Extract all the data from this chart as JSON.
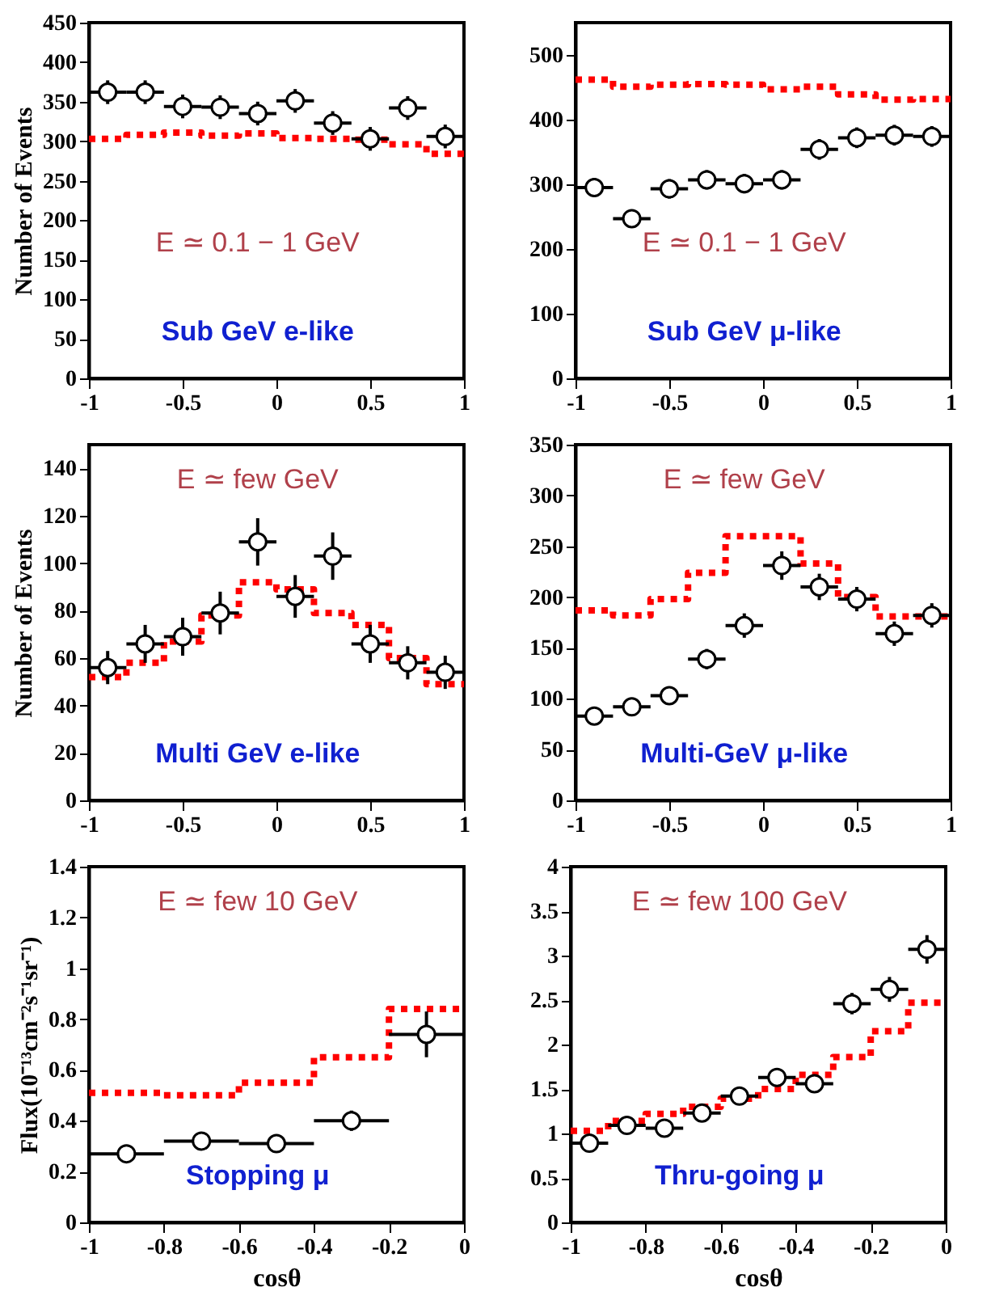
{
  "chart_data": [
    {
      "type": "scatter",
      "ylabel": "Number of Events",
      "annotations": [
        "E ≃ 0.1 − 1 GeV",
        "Sub GeV e-like"
      ],
      "xlim": [
        -1,
        1
      ],
      "xticks": [
        -1,
        -0.5,
        0,
        0.5,
        1
      ],
      "ylim": [
        0,
        450
      ],
      "yticks": [
        0,
        50,
        100,
        150,
        200,
        250,
        300,
        350,
        400,
        450
      ],
      "grid": false,
      "series": [
        {
          "type": "scatter",
          "color": "#000000",
          "marker": "circle",
          "x": [
            -0.9,
            -0.7,
            -0.5,
            -0.3,
            -0.1,
            0.1,
            0.3,
            0.5,
            0.7,
            0.9
          ],
          "values": [
            362,
            362,
            344,
            343,
            335,
            351,
            323,
            303,
            342,
            306
          ],
          "errors": [
            15,
            15,
            15,
            15,
            15,
            15,
            15,
            15,
            15,
            15
          ],
          "xerrors": [
            0.1,
            0.1,
            0.1,
            0.1,
            0.1,
            0.1,
            0.1,
            0.1,
            0.1,
            0.1
          ]
        },
        {
          "type": "step",
          "color": "#ff0000",
          "line_style": "dotted",
          "x": [
            -1,
            -0.8,
            -0.6,
            -0.4,
            -0.2,
            0,
            0.2,
            0.4,
            0.6,
            0.8,
            1
          ],
          "values": [
            303,
            308,
            311,
            307,
            310,
            304,
            303,
            302,
            296,
            284,
            284
          ]
        }
      ]
    },
    {
      "type": "scatter",
      "annotations": [
        "E ≃ 0.1 − 1 GeV",
        "Sub GeV μ-like"
      ],
      "xlim": [
        -1,
        1
      ],
      "xticks": [
        -1,
        -0.5,
        0,
        0.5,
        1
      ],
      "ylim": [
        0,
        550
      ],
      "yticks": [
        0,
        100,
        200,
        300,
        400,
        500
      ],
      "grid": false,
      "series": [
        {
          "type": "scatter",
          "color": "#000000",
          "marker": "circle",
          "x": [
            -0.9,
            -0.7,
            -0.5,
            -0.3,
            -0.1,
            0.1,
            0.3,
            0.5,
            0.7,
            0.9
          ],
          "values": [
            295,
            247,
            293,
            307,
            301,
            307,
            354,
            372,
            376,
            374
          ],
          "errors": [
            15,
            14,
            15,
            15,
            15,
            15,
            16,
            16,
            16,
            16
          ],
          "xerrors": [
            0.1,
            0.1,
            0.1,
            0.1,
            0.1,
            0.1,
            0.1,
            0.1,
            0.1,
            0.1
          ]
        },
        {
          "type": "step",
          "color": "#ff0000",
          "line_style": "dotted",
          "x": [
            -1,
            -0.8,
            -0.6,
            -0.4,
            -0.2,
            0,
            0.2,
            0.4,
            0.6,
            0.8,
            1
          ],
          "values": [
            462,
            451,
            454,
            455,
            454,
            447,
            451,
            439,
            431,
            432,
            432
          ]
        }
      ]
    },
    {
      "type": "scatter",
      "ylabel": "Number of Events",
      "annotations": [
        "E ≃ few GeV",
        "Multi GeV e-like"
      ],
      "xlim": [
        -1,
        1
      ],
      "xticks": [
        -1,
        -0.5,
        0,
        0.5,
        1
      ],
      "ylim": [
        0,
        150
      ],
      "yticks": [
        0,
        20,
        40,
        60,
        80,
        100,
        120,
        140
      ],
      "grid": false,
      "series": [
        {
          "type": "scatter",
          "color": "#000000",
          "marker": "circle",
          "x": [
            -0.9,
            -0.7,
            -0.5,
            -0.3,
            -0.1,
            0.1,
            0.3,
            0.5,
            0.7,
            0.9
          ],
          "values": [
            56,
            66,
            69,
            79,
            109,
            86,
            103,
            66,
            58,
            54
          ],
          "errors": [
            7,
            8,
            8,
            9,
            10,
            9,
            10,
            8,
            7,
            7
          ],
          "xerrors": [
            0.1,
            0.1,
            0.1,
            0.1,
            0.1,
            0.1,
            0.1,
            0.1,
            0.1,
            0.1
          ]
        },
        {
          "type": "step",
          "color": "#ff0000",
          "line_style": "dotted",
          "x": [
            -1,
            -0.8,
            -0.6,
            -0.4,
            -0.2,
            0,
            0.2,
            0.4,
            0.6,
            0.8,
            1
          ],
          "values": [
            52,
            58,
            67,
            78,
            92,
            89,
            79,
            74,
            60,
            49,
            49
          ]
        }
      ]
    },
    {
      "type": "scatter",
      "annotations": [
        "E ≃ few GeV",
        "Multi-GeV μ-like"
      ],
      "xlim": [
        -1,
        1
      ],
      "xticks": [
        -1,
        -0.5,
        0,
        0.5,
        1
      ],
      "ylim": [
        0,
        350
      ],
      "yticks": [
        0,
        50,
        100,
        150,
        200,
        250,
        300,
        350
      ],
      "grid": false,
      "series": [
        {
          "type": "scatter",
          "color": "#000000",
          "marker": "circle",
          "x": [
            -0.9,
            -0.7,
            -0.5,
            -0.3,
            -0.1,
            0.1,
            0.3,
            0.5,
            0.7,
            0.9
          ],
          "values": [
            83,
            92,
            103,
            139,
            172,
            231,
            210,
            198,
            164,
            182
          ],
          "errors": [
            8,
            9,
            9,
            10,
            12,
            14,
            13,
            12,
            12,
            12
          ],
          "xerrors": [
            0.1,
            0.1,
            0.1,
            0.1,
            0.1,
            0.1,
            0.1,
            0.1,
            0.1,
            0.1
          ]
        },
        {
          "type": "step",
          "color": "#ff0000",
          "line_style": "dotted",
          "x": [
            -1,
            -0.8,
            -0.6,
            -0.4,
            -0.2,
            0,
            0.2,
            0.4,
            0.6,
            0.8,
            1
          ],
          "values": [
            187,
            182,
            198,
            224,
            260,
            260,
            233,
            200,
            181,
            181,
            181
          ]
        }
      ]
    },
    {
      "type": "scatter",
      "ylabel": "Flux(10⁻¹³cm⁻²s⁻¹sr⁻¹)",
      "xlabel": "cosθ",
      "annotations": [
        "E ≃ few 10 GeV",
        "Stopping μ"
      ],
      "xlim": [
        -1,
        0
      ],
      "xticks": [
        -1,
        -0.8,
        -0.6,
        -0.4,
        -0.2,
        0
      ],
      "ylim": [
        0,
        1.4
      ],
      "yticks": [
        0,
        0.2,
        0.4,
        0.6,
        0.8,
        1,
        1.2,
        1.4
      ],
      "grid": false,
      "series": [
        {
          "type": "scatter",
          "color": "#000000",
          "marker": "circle",
          "x": [
            -0.9,
            -0.7,
            -0.5,
            -0.3,
            -0.1
          ],
          "values": [
            0.27,
            0.32,
            0.31,
            0.4,
            0.74
          ],
          "errors": [
            0.03,
            0.03,
            0.03,
            0.04,
            0.09
          ],
          "xerrors": [
            0.1,
            0.1,
            0.1,
            0.1,
            0.1
          ]
        },
        {
          "type": "step",
          "color": "#ff0000",
          "line_style": "dotted",
          "x": [
            -1,
            -0.8,
            -0.6,
            -0.4,
            -0.2,
            0
          ],
          "values": [
            0.51,
            0.5,
            0.55,
            0.65,
            0.84,
            0.84
          ]
        }
      ]
    },
    {
      "type": "scatter",
      "xlabel": "cosθ",
      "annotations": [
        "E ≃ few 100 GeV",
        "Thru-going μ"
      ],
      "xlim": [
        -1,
        0
      ],
      "xticks": [
        -1,
        -0.8,
        -0.6,
        -0.4,
        -0.2,
        0
      ],
      "ylim": [
        0,
        4
      ],
      "yticks": [
        0,
        0.5,
        1,
        1.5,
        2,
        2.5,
        3,
        3.5,
        4
      ],
      "grid": false,
      "series": [
        {
          "type": "scatter",
          "color": "#000000",
          "marker": "circle",
          "x": [
            -0.95,
            -0.85,
            -0.75,
            -0.65,
            -0.55,
            -0.45,
            -0.35,
            -0.25,
            -0.15,
            -0.05
          ],
          "values": [
            0.89,
            1.09,
            1.06,
            1.23,
            1.42,
            1.63,
            1.56,
            2.46,
            2.62,
            3.07
          ],
          "errors": [
            0.07,
            0.07,
            0.07,
            0.08,
            0.09,
            0.1,
            0.1,
            0.12,
            0.14,
            0.16
          ],
          "xerrors": [
            0.05,
            0.05,
            0.05,
            0.05,
            0.05,
            0.05,
            0.05,
            0.05,
            0.05,
            0.05
          ]
        },
        {
          "type": "step",
          "color": "#ff0000",
          "line_style": "dotted",
          "x": [
            -1,
            -0.9,
            -0.8,
            -0.7,
            -0.6,
            -0.5,
            -0.4,
            -0.3,
            -0.2,
            -0.1,
            0
          ],
          "values": [
            1.03,
            1.14,
            1.22,
            1.3,
            1.39,
            1.5,
            1.66,
            1.86,
            2.15,
            2.47,
            2.47
          ]
        }
      ]
    }
  ]
}
